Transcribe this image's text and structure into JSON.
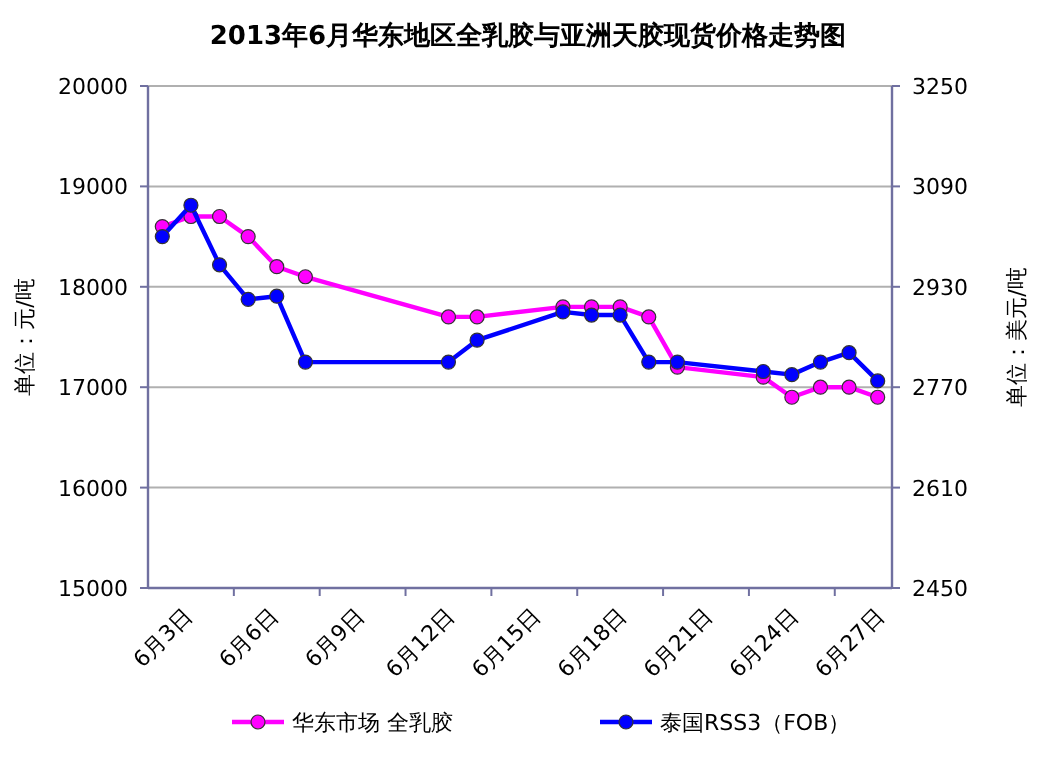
{
  "chart_data": {
    "type": "line",
    "title": "2013年6月华东地区全乳胶与亚洲天胶现货价格走势图",
    "ylabel": "单位：元/吨",
    "y2label": "单位：美元/吨",
    "categories": [
      "6月3日",
      null,
      null,
      "6月6日",
      null,
      null,
      "6月9日",
      null,
      null,
      "6月12日",
      null,
      null,
      "6月15日",
      null,
      null,
      "6月18日",
      null,
      null,
      "6月21日",
      null,
      null,
      "6月24日",
      null,
      null,
      "6月27日",
      null
    ],
    "series": [
      {
        "name": "华东市场 全乳胶",
        "color": "#ff00ff",
        "values": [
          18600,
          18700,
          18700,
          18500,
          18200,
          18100,
          null,
          null,
          null,
          null,
          17700,
          17700,
          null,
          null,
          17800,
          17800,
          17800,
          17700,
          17200,
          null,
          null,
          17100,
          16900,
          17000,
          17000,
          16900
        ]
      },
      {
        "name": "泰国RSS3（FOB）",
        "color": "#0000ff",
        "axis": "y2",
        "values": [
          3010,
          3060,
          2965,
          2910,
          2915,
          2810,
          null,
          null,
          null,
          null,
          2810,
          2845,
          null,
          null,
          2890,
          2885,
          2885,
          2810,
          2810,
          null,
          null,
          2795,
          2790,
          2810,
          2825,
          2780
        ]
      }
    ],
    "ylim": [
      15000,
      20000
    ],
    "yticks": [
      15000,
      16000,
      17000,
      18000,
      19000,
      20000
    ],
    "y2lim": [
      2450,
      3250
    ],
    "y2ticks": [
      2450,
      2610,
      2770,
      2930,
      3090,
      3250
    ],
    "grid": "y",
    "legend": "bottom",
    "marker": "circle",
    "line_style": "solid"
  }
}
